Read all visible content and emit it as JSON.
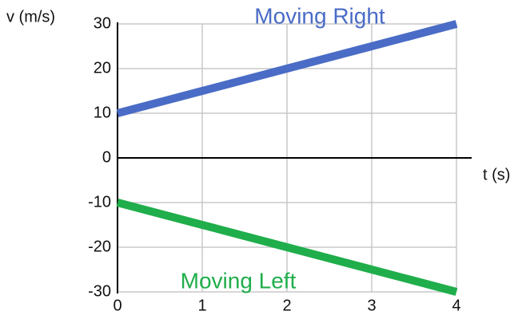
{
  "chart_data": {
    "type": "line",
    "x": [
      0,
      1,
      2,
      3,
      4
    ],
    "series": [
      {
        "name": "Moving Right",
        "color": "#4a6cc6",
        "values": [
          10,
          15,
          20,
          25,
          30
        ]
      },
      {
        "name": "Moving Left",
        "color": "#1fae4b",
        "values": [
          -10,
          -15,
          -20,
          -25,
          -30
        ]
      }
    ],
    "xlabel": "t (s)",
    "ylabel": "v (m/s)",
    "xlim": [
      0,
      4
    ],
    "xticks": [
      0,
      1,
      2,
      3,
      4
    ],
    "ylim": [
      -30,
      30
    ],
    "yticks": [
      -30,
      -20,
      -10,
      0,
      10,
      20,
      30
    ],
    "grid": true
  }
}
